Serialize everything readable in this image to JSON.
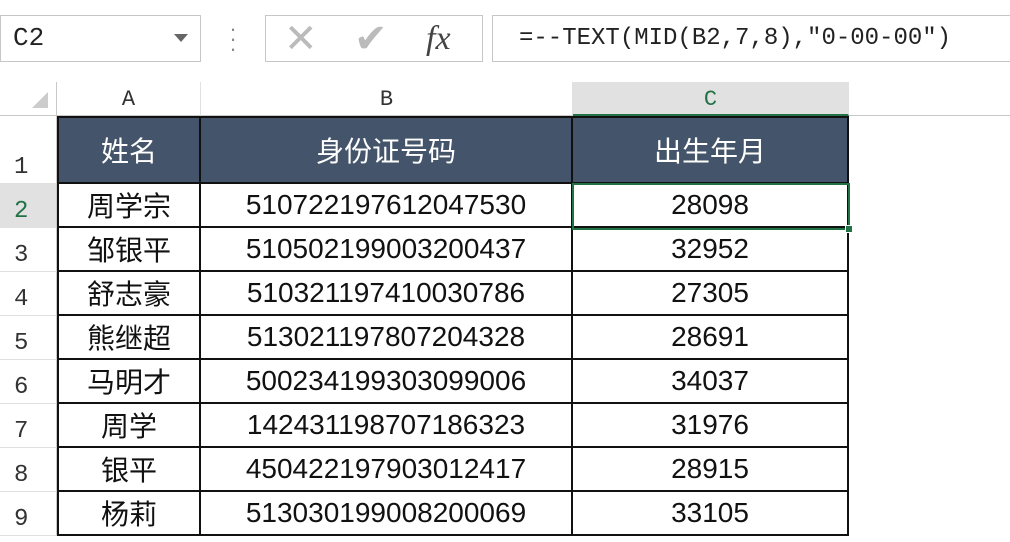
{
  "name_box": {
    "value": "C2"
  },
  "formula_bar": {
    "cancel_icon": "x-icon",
    "enter_icon": "check-icon",
    "fx_label": "fx",
    "formula": "=--TEXT(MID(B2,7,8),\"0-00-00\")"
  },
  "columns": [
    "A",
    "B",
    "C"
  ],
  "selected_cell": "C2",
  "header_color": "#44546a",
  "accent_color": "#217346",
  "rows": [
    {
      "num": "1",
      "cells": [
        "姓名",
        "身份证号码",
        "出生年月"
      ]
    },
    {
      "num": "2",
      "cells": [
        "周学宗",
        "510722197612047530",
        "28098"
      ]
    },
    {
      "num": "3",
      "cells": [
        "邹银平",
        "510502199003200437",
        "32952"
      ]
    },
    {
      "num": "4",
      "cells": [
        "舒志豪",
        "510321197410030786",
        "27305"
      ]
    },
    {
      "num": "5",
      "cells": [
        "熊继超",
        "513021197807204328",
        "28691"
      ]
    },
    {
      "num": "6",
      "cells": [
        "马明才",
        "500234199303099006",
        "34037"
      ]
    },
    {
      "num": "7",
      "cells": [
        "周学",
        "142431198707186323",
        "31976"
      ]
    },
    {
      "num": "8",
      "cells": [
        "银平",
        "450422197903012417",
        "28915"
      ]
    },
    {
      "num": "9",
      "cells": [
        "杨莉",
        "513030199008200069",
        "33105"
      ]
    }
  ]
}
